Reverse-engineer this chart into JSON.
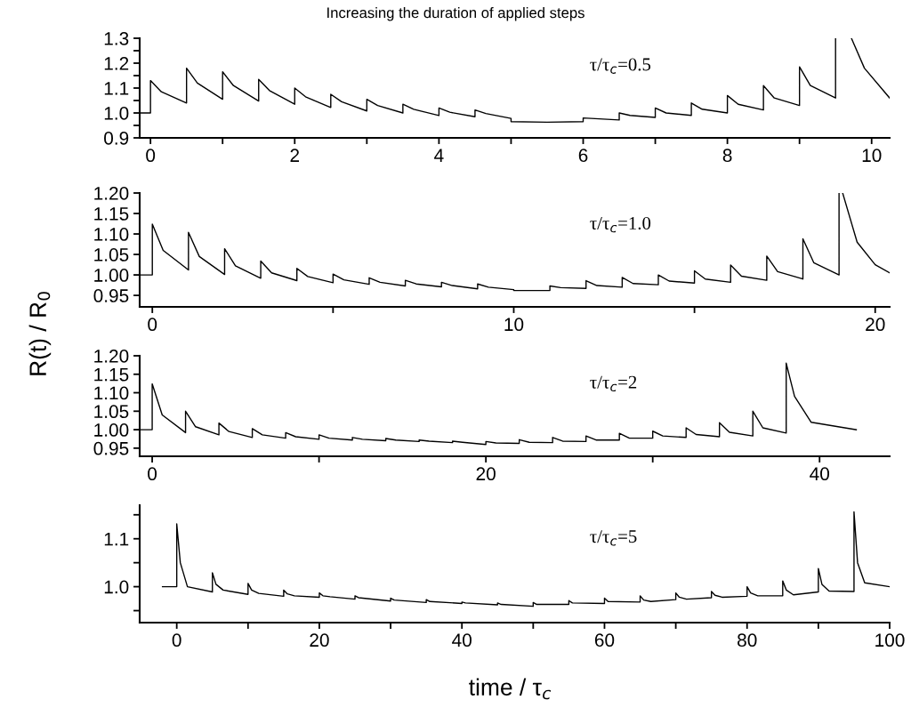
{
  "chart_data": [
    {
      "type": "line",
      "title": "Increasing the duration of applied steps",
      "annotations": [
        "τ/τ$_{c}$=0.5"
      ],
      "grid": false,
      "line_style": "solid",
      "marker": "none",
      "xlim": [
        -0.15,
        10.25
      ],
      "xticks": [
        0,
        {
          "value": 1,
          "label": null
        },
        2,
        {
          "value": 3,
          "label": null
        },
        4,
        {
          "value": 5,
          "label": null
        },
        6,
        {
          "value": 7,
          "label": null
        },
        8,
        {
          "value": 9,
          "label": null
        },
        10
      ],
      "ylim": [
        0.9,
        1.3
      ],
      "yticks": [
        0.9,
        {
          "value": 0.95,
          "label": null
        },
        {
          "value": 1,
          "label": "1.0"
        },
        {
          "value": 1.05,
          "label": null
        },
        1.1,
        {
          "value": 1.15,
          "label": null
        },
        1.2,
        {
          "value": 1.25,
          "label": null
        },
        1.3
      ],
      "series": [
        {
          "color": "#000000",
          "x": [
            -0.15,
            0,
            0,
            0.15,
            0.5,
            0.5,
            0.65,
            1.0,
            1.0,
            1.15,
            1.5,
            1.5,
            1.65,
            2,
            2,
            2.15,
            2.5,
            2.5,
            2.65,
            3,
            3,
            3.15,
            3.5,
            3.5,
            3.65,
            4,
            4,
            4.15,
            4.5,
            4.5,
            4.65,
            5,
            5,
            5.5,
            6,
            6,
            6.5,
            6.5,
            6.65,
            7,
            7,
            7.15,
            7.5,
            7.5,
            7.65,
            8,
            8,
            8.15,
            8.5,
            8.5,
            8.65,
            9,
            9,
            9.15,
            9.5,
            9.5,
            9.6,
            9.72,
            9.9,
            10.25
          ],
          "values": [
            1.0,
            1.0,
            1.13,
            1.085,
            1.04,
            1.18,
            1.12,
            1.055,
            1.165,
            1.11,
            1.048,
            1.135,
            1.09,
            1.035,
            1.1,
            1.065,
            1.022,
            1.075,
            1.045,
            1.008,
            1.055,
            1.03,
            1.0,
            1.035,
            1.015,
            0.99,
            1.02,
            1.003,
            0.985,
            1.012,
            0.998,
            0.978,
            0.965,
            0.963,
            0.965,
            0.98,
            0.972,
            1.0,
            0.99,
            0.982,
            1.02,
            1.0,
            0.99,
            1.04,
            1.015,
            1.0,
            1.07,
            1.035,
            1.012,
            1.11,
            1.06,
            1.03,
            1.185,
            1.11,
            1.06,
            1.3,
            null,
            1.3,
            1.18,
            1.06
          ]
        }
      ]
    },
    {
      "type": "line",
      "ylabel": "R(t) / R$_{0}$",
      "annotations": [
        "τ/τ$_{c}$=1.0"
      ],
      "grid": false,
      "line_style": "solid",
      "marker": "none",
      "xlim": [
        -0.35,
        20.4
      ],
      "xticks": [
        0,
        {
          "value": 5,
          "label": null
        },
        10,
        {
          "value": 15,
          "label": null
        },
        20
      ],
      "ylim": [
        0.922,
        1.2
      ],
      "yticks": [
        {
          "value": 0.95,
          "label": "0.95"
        },
        {
          "value": 1.0,
          "label": "1.00"
        },
        {
          "value": 1.05,
          "label": "1.05"
        },
        {
          "value": 1.1,
          "label": "1.10"
        },
        {
          "value": 1.15,
          "label": "1.15"
        },
        {
          "value": 1.2,
          "label": "1.20"
        }
      ],
      "series": [
        {
          "color": "#000000",
          "x": [
            -0.35,
            0,
            0,
            0.3,
            1,
            1,
            1.3,
            2,
            2,
            2.3,
            3,
            3,
            3.3,
            4,
            4,
            4.3,
            5,
            5,
            5.3,
            6,
            6,
            6.3,
            7,
            7,
            7.3,
            8,
            8,
            8.3,
            9,
            9,
            9.3,
            10,
            10,
            11,
            11,
            11.3,
            12,
            12,
            12.3,
            13,
            13,
            13.3,
            14,
            14,
            14.3,
            15,
            15,
            15.3,
            16,
            16,
            16.3,
            17,
            17,
            17.3,
            18,
            18,
            18.3,
            19,
            19,
            19.05,
            19.1,
            19.5,
            20,
            20.4
          ],
          "values": [
            1.0,
            1.0,
            1.124,
            1.06,
            1.012,
            1.104,
            1.045,
            1.001,
            1.064,
            1.022,
            0.992,
            1.034,
            1.005,
            0.986,
            1.016,
            0.996,
            0.981,
            1.002,
            0.988,
            0.977,
            0.993,
            0.982,
            0.973,
            0.987,
            0.978,
            0.971,
            0.982,
            0.974,
            0.966,
            0.978,
            0.97,
            0.964,
            0.962,
            0.962,
            0.973,
            0.969,
            0.967,
            0.986,
            0.974,
            0.97,
            0.994,
            0.979,
            0.976,
            1.0,
            0.985,
            0.98,
            1.01,
            0.99,
            0.982,
            1.024,
            0.997,
            0.987,
            1.046,
            1.008,
            0.99,
            1.088,
            1.03,
            1.0,
            1.2,
            null,
            1.2,
            1.08,
            1.025,
            1.005
          ]
        }
      ]
    },
    {
      "type": "line",
      "annotations": [
        "τ/τ$_{c}$=2"
      ],
      "grid": false,
      "line_style": "solid",
      "marker": "none",
      "xlim": [
        -0.75,
        44.2
      ],
      "xticks": [
        0,
        {
          "value": 10,
          "label": null
        },
        20,
        {
          "value": 30,
          "label": null
        },
        40
      ],
      "ylim": [
        0.928,
        1.2
      ],
      "yticks": [
        {
          "value": 0.95,
          "label": "0.95"
        },
        {
          "value": 1.0,
          "label": "1.00"
        },
        {
          "value": 1.05,
          "label": "1.05"
        },
        {
          "value": 1.1,
          "label": "1.10"
        },
        {
          "value": 1.15,
          "label": "1.15"
        },
        {
          "value": 1.2,
          "label": "1.20"
        }
      ],
      "series": [
        {
          "color": "#000000",
          "x": [
            -0.75,
            0,
            0,
            0.6,
            2,
            2,
            2.6,
            4,
            4,
            4.6,
            6,
            6,
            6.6,
            8,
            8,
            8.6,
            10,
            10,
            10.6,
            12,
            12,
            12.6,
            14,
            14,
            14.6,
            16,
            16,
            16.6,
            18,
            18,
            18.6,
            20,
            20,
            20.6,
            22,
            22,
            22.6,
            24,
            24,
            24.6,
            26,
            26,
            26.6,
            28,
            28,
            28.6,
            30,
            30,
            30.6,
            32,
            32,
            32.6,
            34,
            34,
            34.6,
            36,
            36,
            36.6,
            38,
            38,
            38.5,
            39.5,
            42.2
          ],
          "values": [
            1.0,
            1.0,
            1.124,
            1.04,
            0.992,
            1.05,
            1.008,
            0.986,
            1.018,
            0.995,
            0.979,
            1.003,
            0.986,
            0.977,
            0.992,
            0.981,
            0.974,
            0.986,
            0.977,
            0.972,
            0.979,
            0.974,
            0.97,
            0.976,
            0.972,
            0.968,
            0.972,
            0.969,
            0.965,
            0.969,
            0.966,
            0.96,
            0.968,
            0.964,
            0.963,
            0.973,
            0.966,
            0.965,
            0.979,
            0.969,
            0.968,
            0.983,
            0.972,
            0.972,
            0.99,
            0.977,
            0.977,
            0.996,
            0.983,
            0.979,
            1.005,
            0.987,
            0.981,
            1.019,
            0.993,
            0.983,
            1.05,
            1.005,
            0.991,
            1.18,
            1.09,
            1.02,
            1.0
          ]
        }
      ]
    },
    {
      "type": "line",
      "xlabel": "time / τ$_{c}$",
      "annotations": [
        "τ/τ$_{c}$=5"
      ],
      "grid": false,
      "line_style": "solid",
      "marker": "none",
      "xlim": [
        -5.2,
        100
      ],
      "xticks": [
        0,
        {
          "value": 10,
          "label": null
        },
        20,
        {
          "value": 30,
          "label": null
        },
        40,
        {
          "value": 50,
          "label": null
        },
        60,
        {
          "value": 70,
          "label": null
        },
        80,
        {
          "value": 90,
          "label": null
        },
        100
      ],
      "ylim": [
        0.925,
        1.17
      ],
      "yticks": [
        {
          "value": 0.95,
          "label": null
        },
        {
          "value": 1,
          "label": "1.0"
        },
        {
          "value": 1.05,
          "label": null
        },
        1.1,
        {
          "value": 1.15,
          "label": null
        }
      ],
      "series": [
        {
          "color": "#000000",
          "x": [
            -2,
            0,
            0,
            0.5,
            1.5,
            5,
            5,
            5.5,
            6.5,
            10,
            10,
            10.5,
            11.5,
            15,
            15,
            15.5,
            16.5,
            20,
            20,
            20.5,
            21.5,
            25,
            25,
            25.5,
            30,
            30,
            30.5,
            35,
            35,
            35.5,
            40,
            40,
            40.5,
            45,
            45,
            45.5,
            50,
            50,
            50.5,
            55,
            55,
            55.5,
            60,
            60,
            60.5,
            65,
            65,
            65.5,
            66.5,
            70,
            70,
            70.5,
            71.5,
            75,
            75,
            75.5,
            76.5,
            80,
            80,
            80.5,
            81.5,
            85,
            85,
            85.5,
            86.5,
            90,
            90,
            90.5,
            91.5,
            95,
            95,
            95.5,
            96.5,
            100
          ],
          "values": [
            1.0,
            1.0,
            1.131,
            1.05,
            1.0,
            0.989,
            1.029,
            1.005,
            0.993,
            0.984,
            1.007,
            0.993,
            0.986,
            0.98,
            0.993,
            0.985,
            0.981,
            0.978,
            0.987,
            0.981,
            0.979,
            0.974,
            0.981,
            0.977,
            0.97,
            0.976,
            0.972,
            0.967,
            0.973,
            0.969,
            0.965,
            0.968,
            0.966,
            0.962,
            0.966,
            0.963,
            0.959,
            0.967,
            0.963,
            0.963,
            0.971,
            0.966,
            0.965,
            0.976,
            0.969,
            0.968,
            0.981,
            0.972,
            0.969,
            0.973,
            0.987,
            0.978,
            0.974,
            0.977,
            0.99,
            0.982,
            0.978,
            0.98,
            1.0,
            0.987,
            0.981,
            0.981,
            1.012,
            0.993,
            0.983,
            0.989,
            1.038,
            1.005,
            0.991,
            0.99,
            1.156,
            1.05,
            1.008,
            1.0
          ]
        }
      ]
    }
  ]
}
